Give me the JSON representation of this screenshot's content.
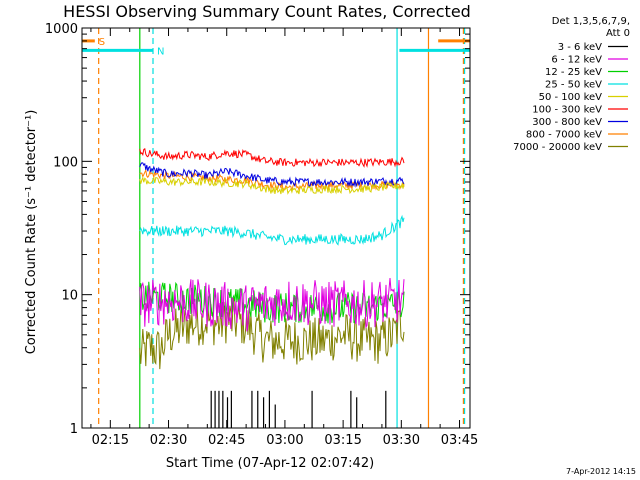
{
  "chart_data": {
    "type": "line",
    "title": "HESSI Observing Summary Count Rates, Corrected",
    "xlabel": "Start Time (07-Apr-12 02:07:42)",
    "ylabel": "Corrected Count Rate (s⁻¹ detector⁻¹)",
    "ylog": true,
    "ylim": [
      1,
      1000
    ],
    "xlim_minutes": [
      7.7,
      107.7
    ],
    "x_ticks": [
      {
        "label": "02:15",
        "minutes": 15
      },
      {
        "label": "02:30",
        "minutes": 30
      },
      {
        "label": "02:45",
        "minutes": 45
      },
      {
        "label": "03:00",
        "minutes": 60
      },
      {
        "label": "03:15",
        "minutes": 75
      },
      {
        "label": "03:30",
        "minutes": 90
      },
      {
        "label": "03:45",
        "minutes": 105
      }
    ],
    "y_ticks": [
      {
        "label": "1",
        "value": 1
      },
      {
        "label": "10",
        "value": 10
      },
      {
        "label": "100",
        "value": 100
      },
      {
        "label": "1000",
        "value": 1000
      }
    ],
    "legend_header": [
      "Det 1,3,5,6,7,9,",
      "Att 0"
    ],
    "legend_position": "right",
    "series": [
      {
        "name": "3 - 6 keV",
        "color": "#000000",
        "x": [
          22.6,
          90.7
        ],
        "y": [
          1.0,
          1.0
        ]
      },
      {
        "name": "6 - 12 keV",
        "color": "#e000e0",
        "x": [
          22.6,
          30,
          40,
          50,
          55,
          60,
          70,
          80,
          90.7
        ],
        "y": [
          8.5,
          9.0,
          8.5,
          8.0,
          8.5,
          9.0,
          8.5,
          8.5,
          9.0
        ]
      },
      {
        "name": "12 - 25 keV",
        "color": "#00d000",
        "x": [
          22.6,
          30,
          40,
          50,
          55,
          60,
          70,
          80,
          90.7
        ],
        "y": [
          9.5,
          9.5,
          9.0,
          8.5,
          8.0,
          8.0,
          8.0,
          8.0,
          8.5
        ]
      },
      {
        "name": "25 - 50 keV",
        "color": "#00e0e0",
        "x": [
          22.6,
          25,
          30,
          35,
          40,
          45,
          50,
          55,
          60,
          65,
          70,
          75,
          80,
          85,
          88,
          90.7
        ],
        "y": [
          31,
          30,
          30,
          30,
          30,
          30,
          29,
          27,
          26,
          26,
          26,
          26,
          26,
          28,
          32,
          36
        ]
      },
      {
        "name": "50 - 100 keV",
        "color": "#d8d000",
        "x": [
          22.6,
          30,
          40,
          50,
          55,
          60,
          70,
          80,
          90.7
        ],
        "y": [
          72,
          70,
          70,
          68,
          62,
          60,
          62,
          62,
          66
        ]
      },
      {
        "name": "100 - 300 keV",
        "color": "#ff0000",
        "x": [
          22.6,
          25,
          30,
          35,
          40,
          45,
          50,
          55,
          60,
          70,
          80,
          90.7
        ],
        "y": [
          120,
          115,
          108,
          112,
          108,
          116,
          112,
          100,
          98,
          98,
          98,
          100
        ]
      },
      {
        "name": "300 - 800 keV",
        "color": "#0000e0",
        "x": [
          22.6,
          25,
          30,
          35,
          40,
          45,
          50,
          55,
          60,
          70,
          80,
          90.7
        ],
        "y": [
          95,
          88,
          80,
          82,
          78,
          84,
          78,
          72,
          70,
          70,
          70,
          72
        ]
      },
      {
        "name": "800 - 7000 keV",
        "color": "#ff8000",
        "x": [
          22.6,
          30,
          40,
          50,
          55,
          60,
          70,
          80,
          90.7
        ],
        "y": [
          82,
          78,
          75,
          72,
          67,
          64,
          66,
          66,
          67
        ]
      },
      {
        "name": "7000 - 20000 keV",
        "color": "#808000",
        "x": [
          22.6,
          25,
          28,
          30,
          33,
          35,
          38,
          40,
          43,
          45,
          48,
          50,
          53,
          55,
          60,
          65,
          70,
          75,
          80,
          85,
          88,
          90.7
        ],
        "y": [
          3.5,
          4.0,
          3.8,
          5.0,
          5.5,
          6.0,
          6.2,
          6.5,
          6.0,
          6.5,
          6.2,
          6.0,
          5.0,
          4.5,
          4.5,
          4.5,
          4.5,
          5.0,
          4.5,
          4.5,
          5.0,
          6.5
        ]
      }
    ],
    "flag_bars": [
      {
        "label": "S",
        "color": "#ff8000",
        "x_start": 7.7,
        "x_end": 11.0,
        "y": 800
      },
      {
        "label": "S",
        "color": "#ff8000",
        "x_start": 99.5,
        "x_end": 107.7,
        "y": 800
      },
      {
        "label": "N",
        "color": "#00e0e0",
        "x_start": 7.7,
        "x_end": 26.0,
        "y": 680
      },
      {
        "label": "N",
        "color": "#00e0e0",
        "x_start": 89.5,
        "x_end": 107.7,
        "y": 680
      }
    ],
    "vertical_markers": [
      {
        "color": "#ff8000",
        "style": "dashed",
        "x": 12.0
      },
      {
        "color": "#00e0e0",
        "style": "dashed",
        "x": 26.0
      },
      {
        "color": "#00e0e0",
        "style": "solid",
        "x": 88.9
      },
      {
        "color": "#ff8000",
        "style": "solid",
        "x": 97.0
      },
      {
        "color": "#ff8000",
        "style": "dashed",
        "x": 106.0
      },
      {
        "color": "#00e0e0",
        "style": "dashed",
        "x": 106.3
      },
      {
        "color": "#00d000",
        "style": "solid",
        "x": 22.6
      }
    ],
    "spikes_3_6keV": [
      {
        "x": 41.0,
        "y": 1.9
      },
      {
        "x": 42.0,
        "y": 1.9
      },
      {
        "x": 43.0,
        "y": 1.9
      },
      {
        "x": 44.0,
        "y": 1.9
      },
      {
        "x": 45.2,
        "y": 1.7
      },
      {
        "x": 46.2,
        "y": 1.9
      },
      {
        "x": 51.5,
        "y": 1.9
      },
      {
        "x": 53.0,
        "y": 1.9
      },
      {
        "x": 54.5,
        "y": 1.7
      },
      {
        "x": 56.0,
        "y": 1.9
      },
      {
        "x": 57.5,
        "y": 1.5
      },
      {
        "x": 67.0,
        "y": 1.9
      },
      {
        "x": 77.0,
        "y": 1.9
      },
      {
        "x": 78.5,
        "y": 1.7
      },
      {
        "x": 86.0,
        "y": 1.9
      }
    ],
    "footer_date": "7-Apr-2012 14:15"
  }
}
